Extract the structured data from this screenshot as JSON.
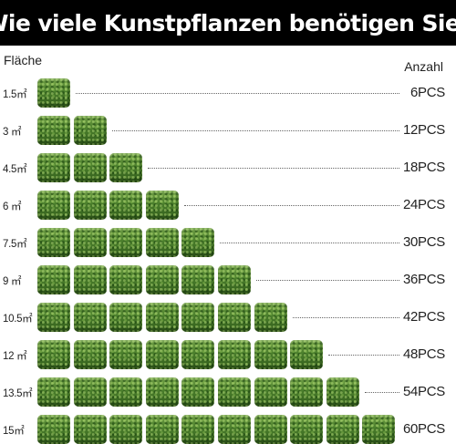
{
  "title": "Wie viele Kunstpflanzen benötigen Sie?",
  "header_left": "Fläche",
  "header_right": "Anzahl",
  "rows": [
    {
      "area": "1.5㎡",
      "count": "6PCS",
      "panels": 1
    },
    {
      "area": "3 ㎡",
      "count": "12PCS",
      "panels": 2
    },
    {
      "area": "4.5㎡",
      "count": "18PCS",
      "panels": 3
    },
    {
      "area": "6 ㎡",
      "count": "24PCS",
      "panels": 4
    },
    {
      "area": "7.5㎡",
      "count": "30PCS",
      "panels": 5
    },
    {
      "area": "9 ㎡",
      "count": "36PCS",
      "panels": 6
    },
    {
      "area": "10.5㎡",
      "count": "42PCS",
      "panels": 7
    },
    {
      "area": "12 ㎡",
      "count": "48PCS",
      "panels": 8
    },
    {
      "area": "13.5㎡",
      "count": "54PCS",
      "panels": 9
    },
    {
      "area": "15㎡",
      "count": "60PCS",
      "panels": 10
    }
  ]
}
